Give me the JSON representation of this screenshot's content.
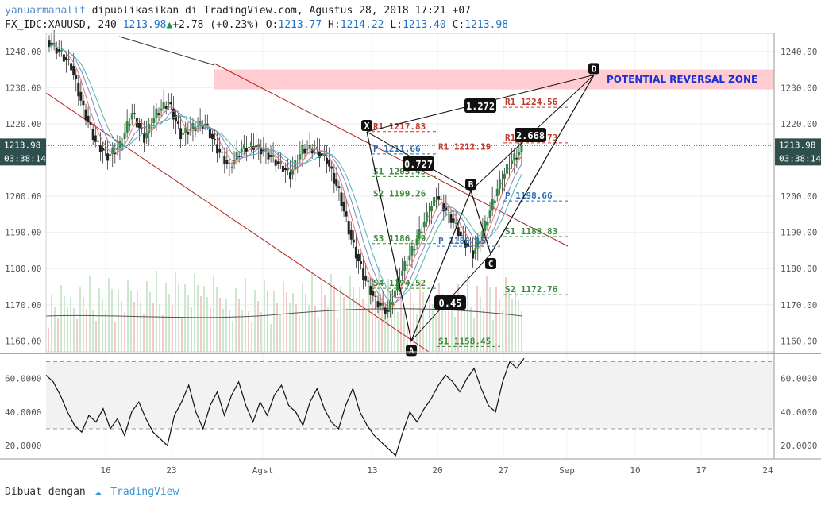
{
  "header": {
    "user": "yanuarmanalif",
    "published_text": "dipublikasikan di TradingView.com, Agustus 28, 2018 17:21 +07",
    "symbol": "FX_IDC:XAUUSD, 240",
    "last": "1213.98",
    "change": "+2.78 (+0.23%)",
    "o_label": "O:",
    "o_value": "1213.77",
    "h_label": "H:",
    "h_value": "1214.22",
    "l_label": "L:",
    "l_value": "1213.40",
    "c_label": "C:",
    "c_value": "1213.98"
  },
  "footer": {
    "made_with": "Dibuat dengan",
    "brand": "TradingView"
  },
  "colors": {
    "up": "#2d8a3e",
    "down": "#222222",
    "channel": "#b22222",
    "prz": "#ffc8cc",
    "rsi": "#111111"
  },
  "chart_data": [
    {
      "type": "candlestick",
      "symbol": "XAUUSD",
      "timeframe": "240",
      "x_ticks": [
        "16",
        "23",
        "Agst",
        "13",
        "20",
        "27",
        "Sep",
        "10",
        "17",
        "24"
      ],
      "y_ticks": [
        1160,
        1170,
        1180,
        1190,
        1200,
        1210,
        1220,
        1230,
        1240
      ],
      "ylim": [
        1157,
        1245
      ],
      "price_badge": "1213.98",
      "countdown_badge": "03:38:14",
      "price_path": [
        1243,
        1240,
        1236,
        1224,
        1215,
        1211,
        1214,
        1223,
        1216,
        1223,
        1226,
        1217,
        1219,
        1220,
        1213,
        1208,
        1213,
        1214,
        1212,
        1209,
        1206,
        1213,
        1213,
        1210,
        1201,
        1188,
        1178,
        1171,
        1168,
        1178,
        1185,
        1193,
        1200,
        1195,
        1189,
        1184,
        1192,
        1202,
        1209,
        1213
      ],
      "harmonic_points": [
        {
          "label": "X",
          "price": 1217.8
        },
        {
          "label": "A",
          "price": 1160.0
        },
        {
          "label": "B",
          "price": 1201.5
        },
        {
          "label": "C",
          "price": 1184.0
        },
        {
          "label": "D",
          "price": 1233.5
        }
      ],
      "ratios": [
        "0.727",
        "0.45",
        "1.272",
        "2.668"
      ],
      "zone_label": "POTENTIAL REVERSAL ZONE",
      "zone_range": [
        1229.5,
        1235
      ],
      "pivots": [
        {
          "label": "R1 1217.83",
          "price": 1217.83,
          "color": "#c0392b"
        },
        {
          "label": "P 1211.66",
          "price": 1211.66,
          "color": "#2e6fb7"
        },
        {
          "label": "S1 1205.43",
          "price": 1205.43,
          "color": "#3a8a3a"
        },
        {
          "label": "S2 1199.26",
          "price": 1199.26,
          "color": "#3a8a3a"
        },
        {
          "label": "S3 1186.89",
          "price": 1186.89,
          "color": "#3a8a3a"
        },
        {
          "label": "S4 1174.52",
          "price": 1174.52,
          "color": "#3a8a3a"
        },
        {
          "label": "R1 1212.19",
          "price": 1212.19,
          "color": "#c0392b"
        },
        {
          "label": "P 1186.15",
          "price": 1186.15,
          "color": "#2e6fb7"
        },
        {
          "label": "S1 1158.45",
          "price": 1158.45,
          "color": "#3a8a3a"
        },
        {
          "label": "R1 1224.56",
          "price": 1224.56,
          "color": "#c0392b"
        },
        {
          "label": "R1 1214.73",
          "price": 1214.73,
          "color": "#c0392b"
        },
        {
          "label": "P 1198.66",
          "price": 1198.66,
          "color": "#2e6fb7"
        },
        {
          "label": "S1 1188.83",
          "price": 1188.83,
          "color": "#3a8a3a"
        },
        {
          "label": "S2 1172.76",
          "price": 1172.76,
          "color": "#3a8a3a"
        }
      ]
    },
    {
      "type": "line",
      "name": "RSI",
      "y_ticks": [
        "60.0000",
        "40.0000",
        "20.0000"
      ],
      "ylim": [
        12,
        74
      ],
      "band": [
        30,
        70
      ],
      "values": [
        62,
        58,
        50,
        40,
        32,
        28,
        38,
        34,
        42,
        30,
        36,
        26,
        40,
        46,
        36,
        28,
        24,
        20,
        38,
        46,
        56,
        40,
        30,
        44,
        52,
        38,
        50,
        58,
        44,
        34,
        46,
        38,
        50,
        56,
        44,
        40,
        32,
        46,
        54,
        42,
        34,
        30,
        44,
        54,
        40,
        32,
        26,
        22,
        18,
        14,
        28,
        40,
        34,
        42,
        48,
        56,
        62,
        58,
        52,
        60,
        66,
        54,
        44,
        40,
        58,
        70,
        66,
        72
      ]
    }
  ]
}
